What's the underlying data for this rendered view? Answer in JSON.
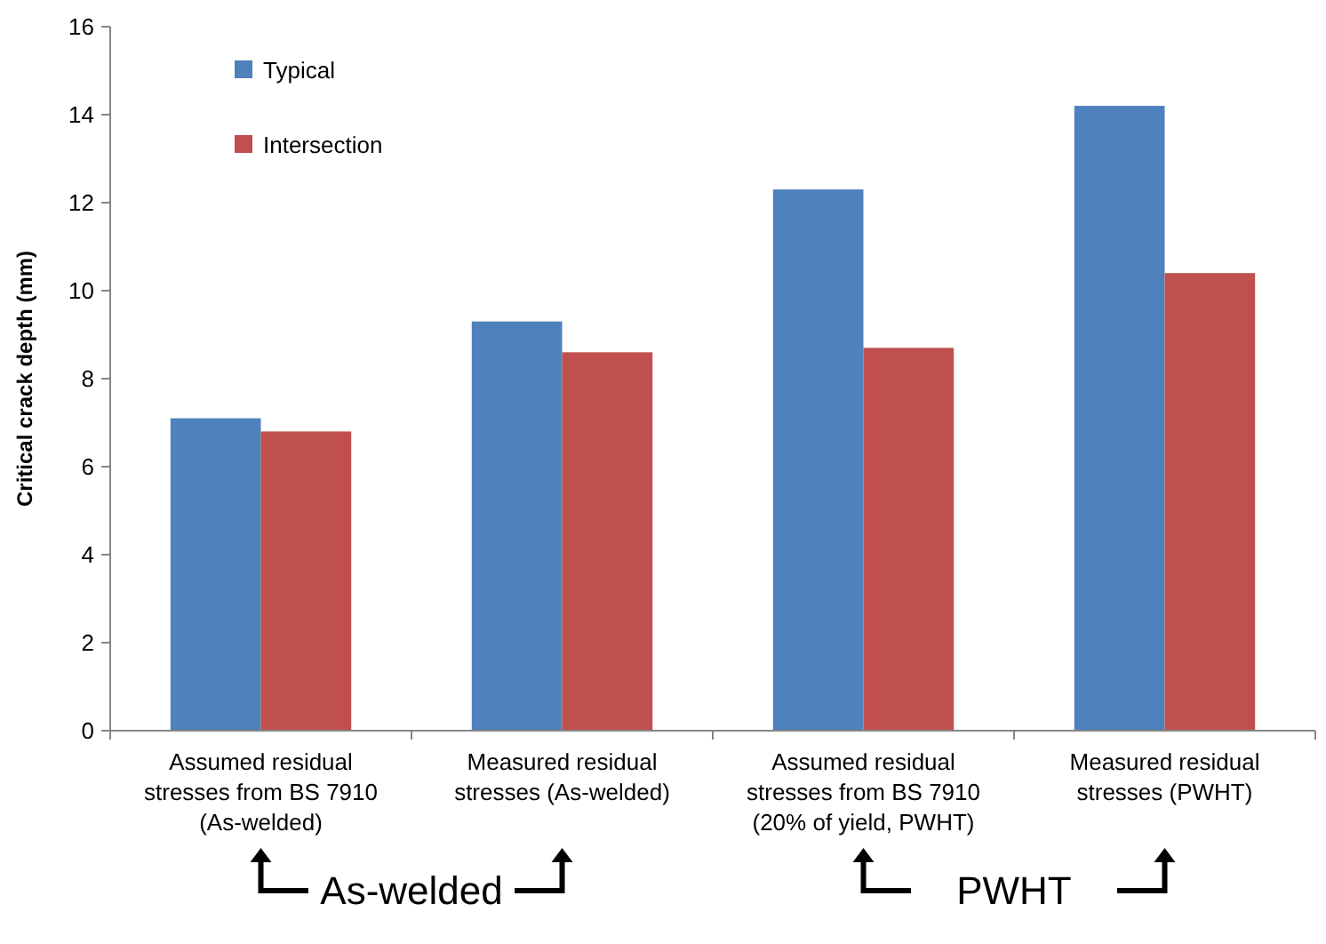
{
  "chart_data": {
    "type": "bar",
    "ylabel": "Critical crack depth (mm)",
    "categories": [
      "Assumed residual stresses from BS 7910 (As-welded)",
      "Measured residual stresses (As-welded)",
      "Assumed residual stresses from BS 7910 (20% of yield, PWHT)",
      "Measured residual stresses (PWHT)"
    ],
    "series": [
      {
        "name": "Typical",
        "color": "#4f81bd",
        "values": [
          7.1,
          9.3,
          12.3,
          14.2
        ]
      },
      {
        "name": "Intersection",
        "color": "#c0504d",
        "values": [
          6.8,
          8.6,
          8.7,
          10.4
        ]
      }
    ],
    "ylim": [
      0,
      16
    ],
    "yticks": [
      0,
      2,
      4,
      6,
      8,
      10,
      12,
      14,
      16
    ],
    "grid": false,
    "legend": "top left",
    "annotations": [
      "As-welded",
      "PWHT"
    ]
  }
}
